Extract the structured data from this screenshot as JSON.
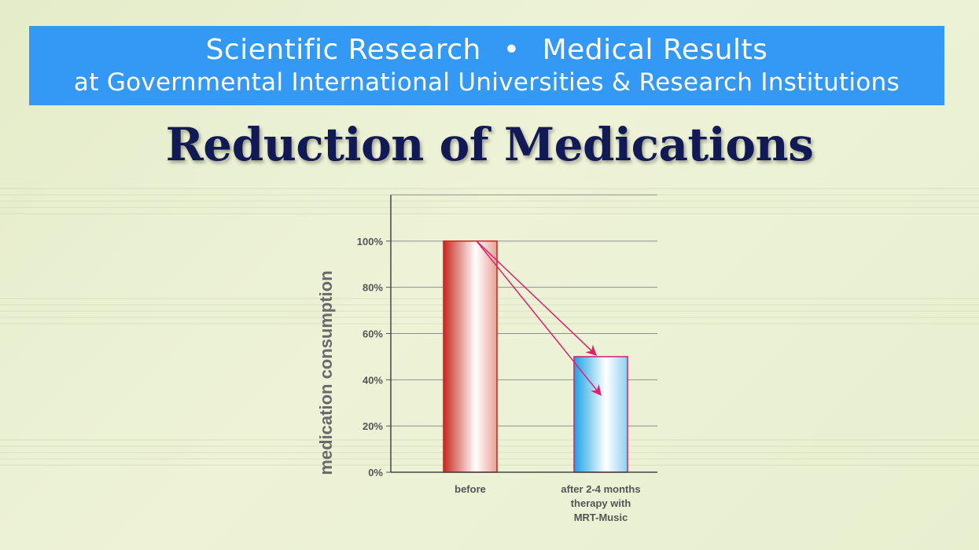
{
  "banner": {
    "line1_left": "Scientific Research",
    "separator": "•",
    "line1_right": "Medical Results",
    "line2": "at Governmental International Universities & Research Institutions"
  },
  "title": "Reduction of Medications",
  "colors": {
    "banner": "#3399f5",
    "title": "#121a55",
    "before_bar": "#d8453a",
    "after_bar": "#1ba8e6",
    "arrow": "#e0206e",
    "axis_text": "#555555"
  },
  "chart_data": {
    "type": "bar",
    "categories": [
      "before",
      "after 2-4 months therapy with MRT-Music"
    ],
    "category_lines": [
      [
        "before"
      ],
      [
        "after 2-4 months",
        "therapy with",
        "MRT-Music"
      ]
    ],
    "values": [
      100,
      50
    ],
    "ylabel": "medication consumption",
    "xlabel": "",
    "ylim": [
      0,
      120
    ],
    "yticks": [
      0,
      20,
      40,
      60,
      80,
      100
    ],
    "ytick_labels": [
      "0%",
      "20%",
      "40%",
      "60%",
      "80%",
      "100%"
    ],
    "grid": true,
    "annotations": [
      {
        "type": "arrow",
        "from_value": 100,
        "to_value": 50
      },
      {
        "type": "arrow",
        "from_value": 100,
        "to_value": 30
      }
    ]
  }
}
